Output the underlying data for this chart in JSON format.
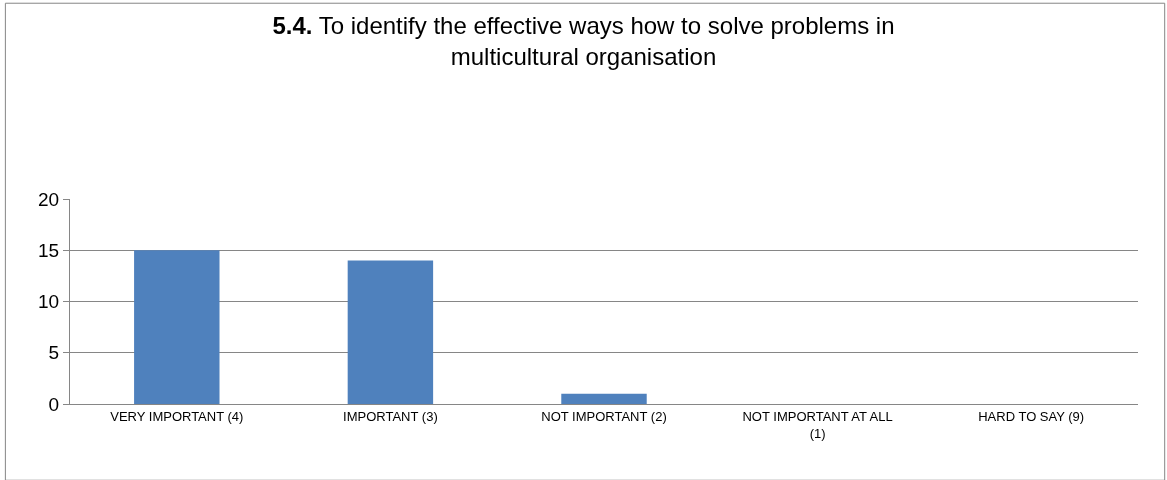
{
  "chart_data": {
    "type": "bar",
    "title": "5.4. To identify the effective ways how to solve problems in multicultural organisation",
    "categories": [
      "VERY IMPORTANT (4)",
      "IMPORTANT (3)",
      "NOT IMPORTANT (2)",
      "NOT IMPORTANT AT ALL (1)",
      "HARD TO SAY (9)"
    ],
    "values": [
      15,
      14,
      1,
      0,
      0
    ],
    "color": "#4f81bd",
    "ylim": [
      0,
      20
    ],
    "yticks": [
      0,
      5,
      10,
      15,
      20
    ],
    "grid": "y"
  }
}
